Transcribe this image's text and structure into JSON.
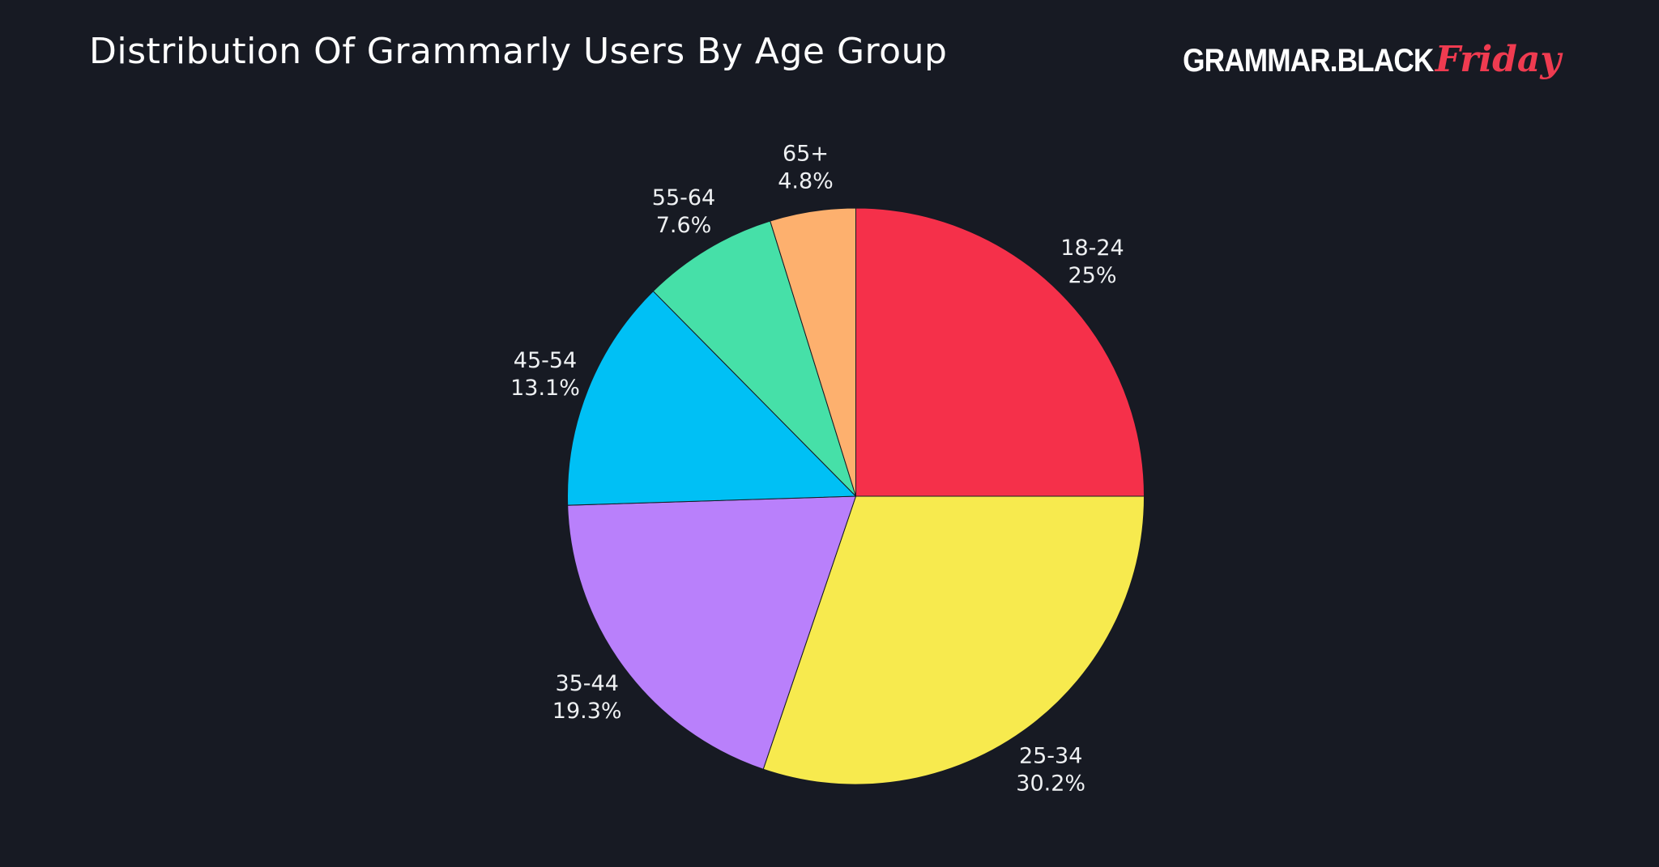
{
  "background": "#171a23",
  "header": {
    "title": "Distribution Of Grammarly Users By Age Group",
    "logo": {
      "part1": "GRAMMAR.BLACK",
      "part2": "Friday",
      "accent_color": "#ef3b50"
    }
  },
  "chart_data": {
    "type": "pie",
    "title": "Distribution Of Grammarly Users By Age Group",
    "categories": [
      "18-24",
      "25-34",
      "35-44",
      "45-54",
      "55-64",
      "65+"
    ],
    "values": [
      25,
      30.2,
      19.3,
      13.1,
      7.6,
      4.8
    ],
    "percent_labels": [
      "25%",
      "30.2%",
      "19.3%",
      "13.1%",
      "7.6%",
      "4.8%"
    ],
    "colors": [
      "#f5304a",
      "#f7ea4e",
      "#b980fb",
      "#00c0f5",
      "#46e0a8",
      "#fdb06e"
    ],
    "start_angle_deg": 0,
    "direction": "clockwise",
    "label_position": "outside",
    "legend": "none",
    "label_color": "#eef0f2",
    "slice_separator_color": "#171a23"
  }
}
